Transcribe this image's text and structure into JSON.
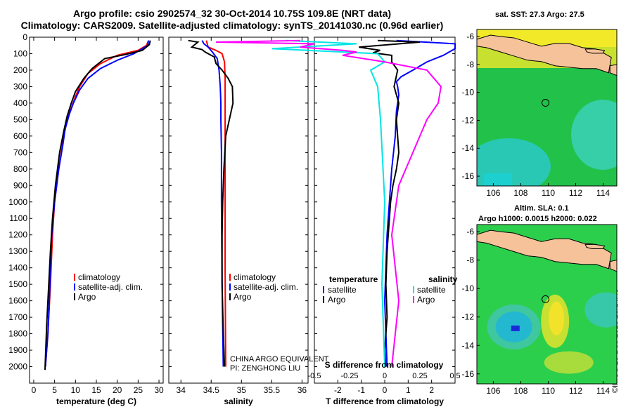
{
  "header": {
    "line1": "Argo profile: csio 2902574_32 30-Oct-2014 10.75S 109.8E (NRT data)",
    "line2": "Climatology: CARS2009. Satellite-adjusted climatology: synTS_20141030.nc (0.96d earlier)"
  },
  "colors": {
    "climatology": "#ff0000",
    "satellite": "#0000ff",
    "argo": "#000000",
    "s_satellite": "#00e5e5",
    "s_argo": "#ff00ff",
    "land": "#f5c29a"
  },
  "chart_data": [
    {
      "type": "line",
      "id": "temperature",
      "xlabel": "temperature (deg C)",
      "ylabel": "",
      "xlim": [
        -1,
        31
      ],
      "ylim": [
        2100,
        0
      ],
      "y_inverted": true,
      "xticks": [
        0,
        5,
        10,
        15,
        20,
        25,
        30
      ],
      "yticks": [
        0,
        100,
        200,
        300,
        400,
        500,
        600,
        700,
        800,
        900,
        1000,
        1100,
        1200,
        1300,
        1400,
        1500,
        1600,
        1700,
        1800,
        1900,
        2000
      ],
      "legend": [
        "climatology",
        "satellite-adj. clim.",
        "Argo"
      ],
      "series": [
        {
          "name": "climatology",
          "color": "#ff0000",
          "x": [
            27.5,
            27,
            25,
            20,
            16,
            13,
            11,
            10,
            9,
            8,
            7.2,
            6,
            5,
            4.5,
            4,
            3.4,
            2.8
          ],
          "y": [
            20,
            50,
            80,
            110,
            160,
            220,
            300,
            360,
            430,
            500,
            600,
            800,
            1000,
            1200,
            1500,
            1800,
            2000
          ]
        },
        {
          "name": "satellite-adj. clim.",
          "color": "#0000ff",
          "x": [
            27.5,
            27.3,
            24,
            20,
            16,
            13,
            11,
            9.5,
            8.5,
            7.5,
            7,
            6,
            5,
            4.3,
            3.9,
            3.4,
            2.8
          ],
          "y": [
            20,
            50,
            100,
            140,
            190,
            250,
            320,
            400,
            470,
            560,
            650,
            800,
            1000,
            1200,
            1500,
            1800,
            2000
          ]
        },
        {
          "name": "Argo",
          "color": "#000000",
          "x": [
            27.9,
            27.7,
            26,
            22,
            17,
            14,
            12,
            10,
            9,
            8,
            7.2,
            6.2,
            5.2,
            4.5,
            4,
            3.6,
            3.1,
            2.7
          ],
          "y": [
            20,
            45,
            80,
            105,
            130,
            190,
            250,
            330,
            400,
            480,
            570,
            700,
            900,
            1100,
            1300,
            1500,
            1750,
            2020
          ]
        }
      ]
    },
    {
      "type": "line",
      "id": "salinity",
      "xlabel": "salinity",
      "xlim": [
        33.8,
        36.1
      ],
      "ylim": [
        2100,
        0
      ],
      "xticks": [
        34,
        34.5,
        35,
        35.5,
        36
      ],
      "legend": [
        "climatology",
        "satellite-adj. clim.",
        "Argo"
      ],
      "annotation": [
        "CHINA ARGO EQUIVALENT",
        "PI: ZENGHONG LIU"
      ],
      "series": [
        {
          "name": "climatology",
          "color": "#ff0000",
          "x": [
            34.42,
            34.45,
            34.58,
            34.68,
            34.72,
            34.73,
            34.73,
            34.73,
            34.73,
            34.74
          ],
          "y": [
            20,
            60,
            80,
            100,
            150,
            250,
            400,
            800,
            1400,
            2000
          ]
        },
        {
          "name": "satellite-adj. clim.",
          "color": "#0000ff",
          "x": [
            34.35,
            34.38,
            34.45,
            34.52,
            34.6,
            34.63,
            34.65,
            34.66,
            34.66,
            34.67,
            34.67,
            34.68,
            34.7
          ],
          "y": [
            20,
            40,
            60,
            90,
            130,
            200,
            300,
            400,
            500,
            700,
            1000,
            1500,
            2000
          ]
        },
        {
          "name": "Argo",
          "color": "#000000",
          "x": [
            34.12,
            34.28,
            34.18,
            34.35,
            34.4,
            34.55,
            34.58,
            34.68,
            34.78,
            34.85,
            34.86,
            34.8,
            34.74,
            34.71,
            34.69,
            34.68,
            34.68,
            34.7,
            34.72
          ],
          "y": [
            20,
            30,
            60,
            75,
            90,
            120,
            160,
            200,
            250,
            300,
            400,
            500,
            600,
            800,
            1000,
            1200,
            1500,
            1800,
            2000
          ]
        }
      ]
    },
    {
      "type": "line",
      "id": "difference",
      "xlabel": "T difference from climatology",
      "x2label": "S difference from climatology",
      "xlim": [
        -3,
        3
      ],
      "ylim": [
        2100,
        0
      ],
      "xticks": [
        -2,
        -1,
        0,
        1,
        2
      ],
      "x2ticks": [
        "-0.5",
        "-0.25",
        "0",
        "0.25",
        "0.5"
      ],
      "x2_values": [
        -0.5,
        -0.25,
        0,
        0.25,
        0.5
      ],
      "legend_left": {
        "title": "temperature",
        "items": [
          "satellite",
          "Argo"
        ]
      },
      "legend_right": {
        "title": "salinity",
        "items": [
          "satellite",
          "Argo"
        ]
      },
      "series": [
        {
          "name": "T satellite",
          "color": "#0000ff",
          "x": [
            0.5,
            3,
            3,
            2.5,
            1.8,
            1.2,
            0.7,
            0.5,
            0.55,
            0.6,
            0.5,
            0.45,
            0.3,
            0.2,
            0.1,
            0.05,
            0,
            0.05,
            0.1
          ],
          "y": [
            20,
            40,
            70,
            110,
            150,
            200,
            240,
            270,
            300,
            350,
            450,
            600,
            800,
            1000,
            1200,
            1400,
            1600,
            1800,
            2000
          ]
        },
        {
          "name": "T Argo",
          "color": "#000000",
          "x": [
            -0.3,
            1.5,
            -1.1,
            -0.2,
            -0.5,
            0.3,
            0.3,
            0.55,
            0.4,
            0.6,
            0.5,
            0.55,
            0.6,
            0.5,
            0.35,
            0.25,
            0.2,
            0.1,
            0.05,
            0.1,
            0,
            0.05
          ],
          "y": [
            20,
            30,
            60,
            80,
            95,
            110,
            150,
            200,
            300,
            400,
            500,
            600,
            700,
            800,
            900,
            1000,
            1100,
            1300,
            1500,
            1700,
            1900,
            2000
          ]
        },
        {
          "name": "S satellite",
          "color": "#00e5e5",
          "x": [
            -0.7,
            -0.2,
            -0.8,
            -0.05,
            0,
            -0.1,
            -0.05,
            -0.03,
            0,
            -0.02,
            0
          ],
          "y": [
            20,
            40,
            70,
            100,
            150,
            200,
            300,
            500,
            1000,
            1500,
            2000
          ]
        },
        {
          "name": "S Argo",
          "color": "#ff00ff",
          "x": [
            -0.6,
            -1.2,
            -0.5,
            -0.6,
            -0.3,
            -0.2,
            -0.3,
            0,
            0.3,
            0.35,
            0.4,
            0.38,
            0.3,
            0.2,
            0.1,
            0.05,
            0.1,
            0.05
          ],
          "y": [
            20,
            30,
            40,
            60,
            80,
            90,
            110,
            150,
            200,
            250,
            300,
            400,
            500,
            700,
            900,
            1200,
            1600,
            2000
          ]
        }
      ]
    },
    {
      "type": "heatmap",
      "id": "sst-map",
      "title": "sat. SST: 27.3 Argo: 27.5",
      "xticks": [
        106,
        108,
        110,
        112,
        114
      ],
      "yticks": [
        -6,
        -8,
        -10,
        -12,
        -14,
        -16
      ],
      "xlim": [
        104.8,
        115
      ],
      "ylim": [
        -16.7,
        -5.5
      ],
      "marker": {
        "lon": 109.8,
        "lat": -10.75
      }
    },
    {
      "type": "heatmap",
      "id": "sla-map",
      "title": [
        "Altim. SLA: 0.1",
        "Argo h1000: 0.0015 h2000: 0.022"
      ],
      "xticks": [
        106,
        108,
        110,
        112,
        114
      ],
      "yticks": [
        -6,
        -8,
        -10,
        -12,
        -14,
        -16
      ],
      "xlim": [
        104.8,
        115
      ],
      "ylim": [
        -16.7,
        -5.5
      ],
      "marker": {
        "lon": 109.8,
        "lat": -10.75
      }
    }
  ],
  "credit": "©IMOS 13-Dec-2018 23:14:43"
}
